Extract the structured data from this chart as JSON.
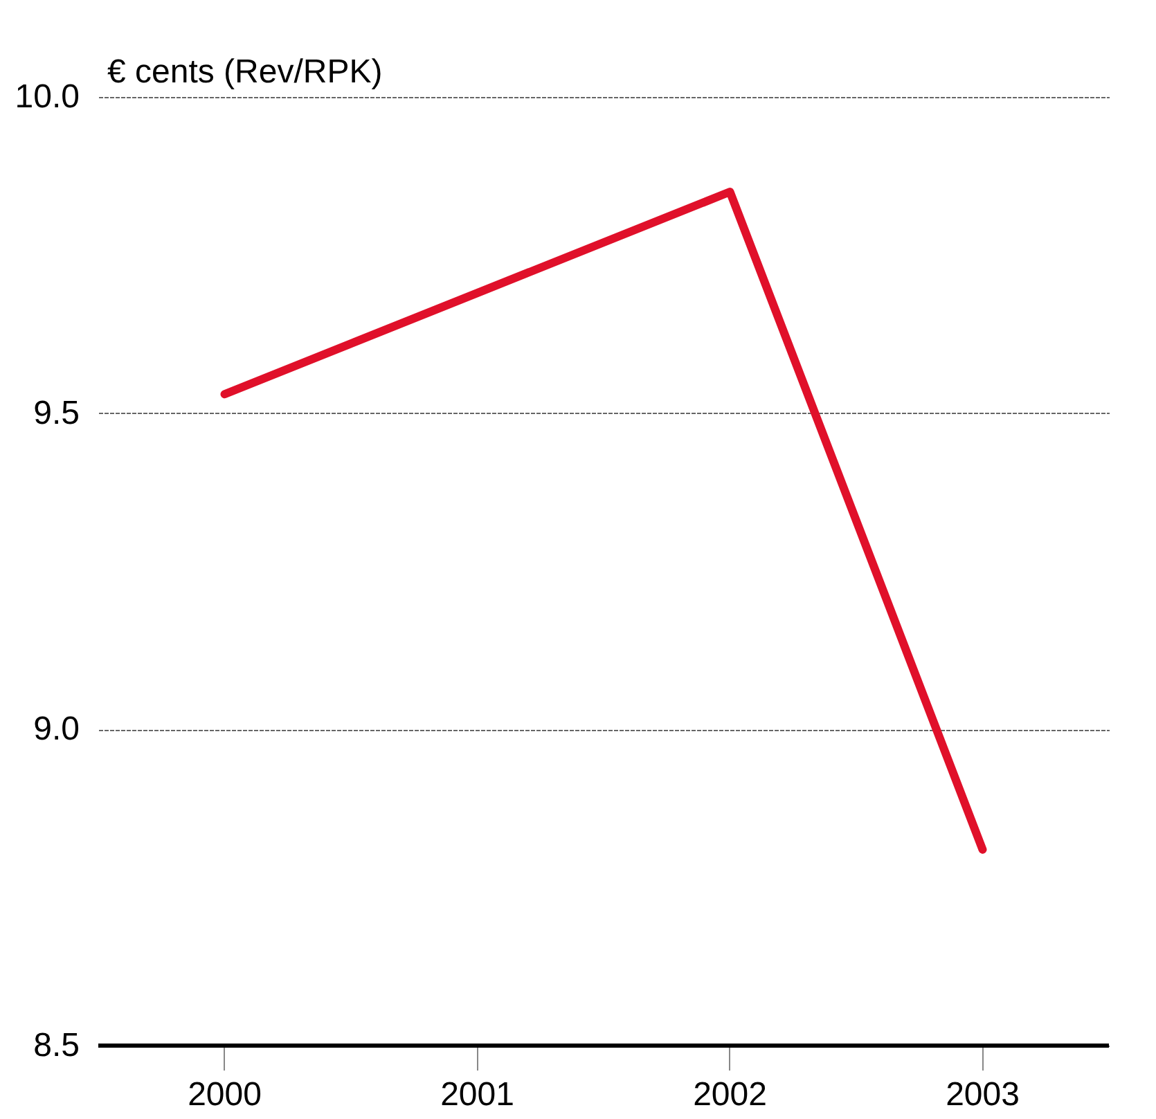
{
  "chart_data": {
    "type": "line",
    "ylabel": "€ cents (Rev/RPK)",
    "categories": [
      "2000",
      "2001",
      "2002",
      "2003"
    ],
    "series": [
      {
        "color": "#e0102a",
        "values": [
          9.53,
          9.69,
          9.85,
          8.81
        ]
      }
    ],
    "ylim": [
      8.5,
      10.0
    ],
    "yticks": [
      {
        "value": 8.5,
        "label": "8.5"
      },
      {
        "value": 9.0,
        "label": "9.0"
      },
      {
        "value": 9.5,
        "label": "9.5"
      },
      {
        "value": 10.0,
        "label": "10.0"
      }
    ],
    "grid": "y",
    "marker": "none",
    "line_style": "solid"
  }
}
